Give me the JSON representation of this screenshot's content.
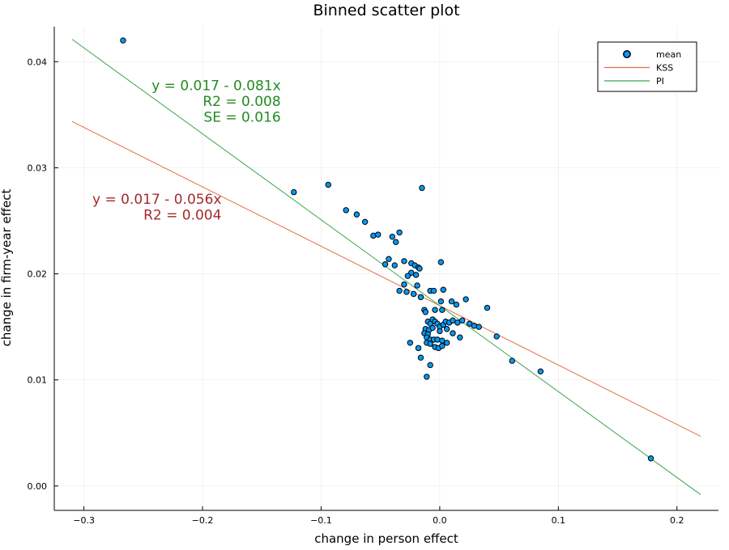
{
  "chart_data": {
    "type": "scatter",
    "title": "Binned scatter plot",
    "xlabel": "change in person effect",
    "ylabel": "change in firm-year effect",
    "xlim": [
      -0.325,
      0.235
    ],
    "ylim": [
      -0.0023,
      0.0433
    ],
    "xticks": [
      -0.3,
      -0.2,
      -0.1,
      0.0,
      0.1,
      0.2
    ],
    "xtick_labels": [
      "−0.3",
      "−0.2",
      "−0.1",
      "0.0",
      "0.1",
      "0.2"
    ],
    "yticks": [
      0.0,
      0.01,
      0.02,
      0.03,
      0.04
    ],
    "ytick_labels": [
      "0.00",
      "0.01",
      "0.02",
      "0.03",
      "0.04"
    ],
    "grid": true,
    "legend_position": "top-right",
    "series": [
      {
        "name": "mean",
        "kind": "scatter",
        "color": "#009af9",
        "points": [
          [
            -0.267,
            0.042
          ],
          [
            -0.123,
            0.0277
          ],
          [
            -0.094,
            0.0284
          ],
          [
            -0.079,
            0.026
          ],
          [
            -0.07,
            0.0256
          ],
          [
            -0.063,
            0.0249
          ],
          [
            -0.056,
            0.0236
          ],
          [
            -0.052,
            0.0237
          ],
          [
            -0.04,
            0.0235
          ],
          [
            -0.037,
            0.023
          ],
          [
            -0.034,
            0.0239
          ],
          [
            -0.015,
            0.0281
          ],
          [
            -0.046,
            0.0209
          ],
          [
            -0.043,
            0.0214
          ],
          [
            -0.038,
            0.0208
          ],
          [
            -0.03,
            0.0212
          ],
          [
            -0.024,
            0.021
          ],
          [
            -0.021,
            0.0208
          ],
          [
            -0.018,
            0.0206
          ],
          [
            -0.017,
            0.0205
          ],
          [
            -0.024,
            0.0201
          ],
          [
            -0.02,
            0.0199
          ],
          [
            -0.027,
            0.0198
          ],
          [
            -0.019,
            0.0189
          ],
          [
            -0.03,
            0.019
          ],
          [
            -0.034,
            0.0184
          ],
          [
            -0.028,
            0.0183
          ],
          [
            -0.022,
            0.0181
          ],
          [
            -0.016,
            0.0178
          ],
          [
            -0.008,
            0.0184
          ],
          [
            -0.005,
            0.0184
          ],
          [
            0.001,
            0.0211
          ],
          [
            0.003,
            0.0185
          ],
          [
            0.001,
            0.0174
          ],
          [
            -0.013,
            0.0166
          ],
          [
            -0.012,
            0.0164
          ],
          [
            -0.004,
            0.0166
          ],
          [
            0.002,
            0.0166
          ],
          [
            0.01,
            0.0174
          ],
          [
            0.014,
            0.0171
          ],
          [
            0.022,
            0.0176
          ],
          [
            0.04,
            0.0168
          ],
          [
            -0.01,
            0.0155
          ],
          [
            -0.008,
            0.0153
          ],
          [
            -0.006,
            0.0157
          ],
          [
            -0.004,
            0.0155
          ],
          [
            -0.002,
            0.0153
          ],
          [
            0.0,
            0.015
          ],
          [
            0.003,
            0.0152
          ],
          [
            0.005,
            0.0155
          ],
          [
            0.008,
            0.0154
          ],
          [
            0.011,
            0.0156
          ],
          [
            0.015,
            0.0154
          ],
          [
            0.019,
            0.0156
          ],
          [
            0.025,
            0.0153
          ],
          [
            0.029,
            0.0151
          ],
          [
            0.033,
            0.015
          ],
          [
            -0.012,
            0.0148
          ],
          [
            -0.009,
            0.0147
          ],
          [
            -0.006,
            0.0149
          ],
          [
            0.0,
            0.0146
          ],
          [
            0.006,
            0.0148
          ],
          [
            -0.013,
            0.0144
          ],
          [
            -0.01,
            0.0143
          ],
          [
            0.011,
            0.0144
          ],
          [
            0.017,
            0.014
          ],
          [
            0.048,
            0.0141
          ],
          [
            -0.011,
            0.014
          ],
          [
            -0.008,
            0.0138
          ],
          [
            -0.005,
            0.0138
          ],
          [
            -0.002,
            0.0138
          ],
          [
            0.002,
            0.0137
          ],
          [
            0.006,
            0.0135
          ],
          [
            -0.011,
            0.0135
          ],
          [
            -0.008,
            0.0134
          ],
          [
            -0.025,
            0.0135
          ],
          [
            -0.004,
            0.0131
          ],
          [
            -0.001,
            0.013
          ],
          [
            0.002,
            0.0132
          ],
          [
            -0.018,
            0.013
          ],
          [
            -0.016,
            0.0121
          ],
          [
            -0.008,
            0.0114
          ],
          [
            -0.011,
            0.0103
          ],
          [
            0.061,
            0.0118
          ],
          [
            0.085,
            0.0108
          ],
          [
            0.178,
            0.0026
          ]
        ]
      },
      {
        "name": "KSS",
        "kind": "line",
        "color": "#e26f46",
        "intercept": 0.017,
        "slope": -0.056,
        "x_range": [
          -0.31,
          0.22
        ]
      },
      {
        "name": "PI",
        "kind": "line",
        "color": "#3da44d",
        "intercept": 0.017,
        "slope": -0.081,
        "x_range": [
          -0.31,
          0.22
        ]
      }
    ],
    "annotations": [
      {
        "color": "#228b22",
        "at": [
          -0.134,
          0.0373
        ],
        "lines": [
          "y = 0.017 - 0.081x",
          "R2 = 0.008",
          "SE = 0.016"
        ]
      },
      {
        "color": "#a52a2a",
        "at": [
          -0.184,
          0.0266
        ],
        "lines": [
          "y = 0.017 - 0.056x",
          "R2 = 0.004"
        ]
      }
    ]
  }
}
